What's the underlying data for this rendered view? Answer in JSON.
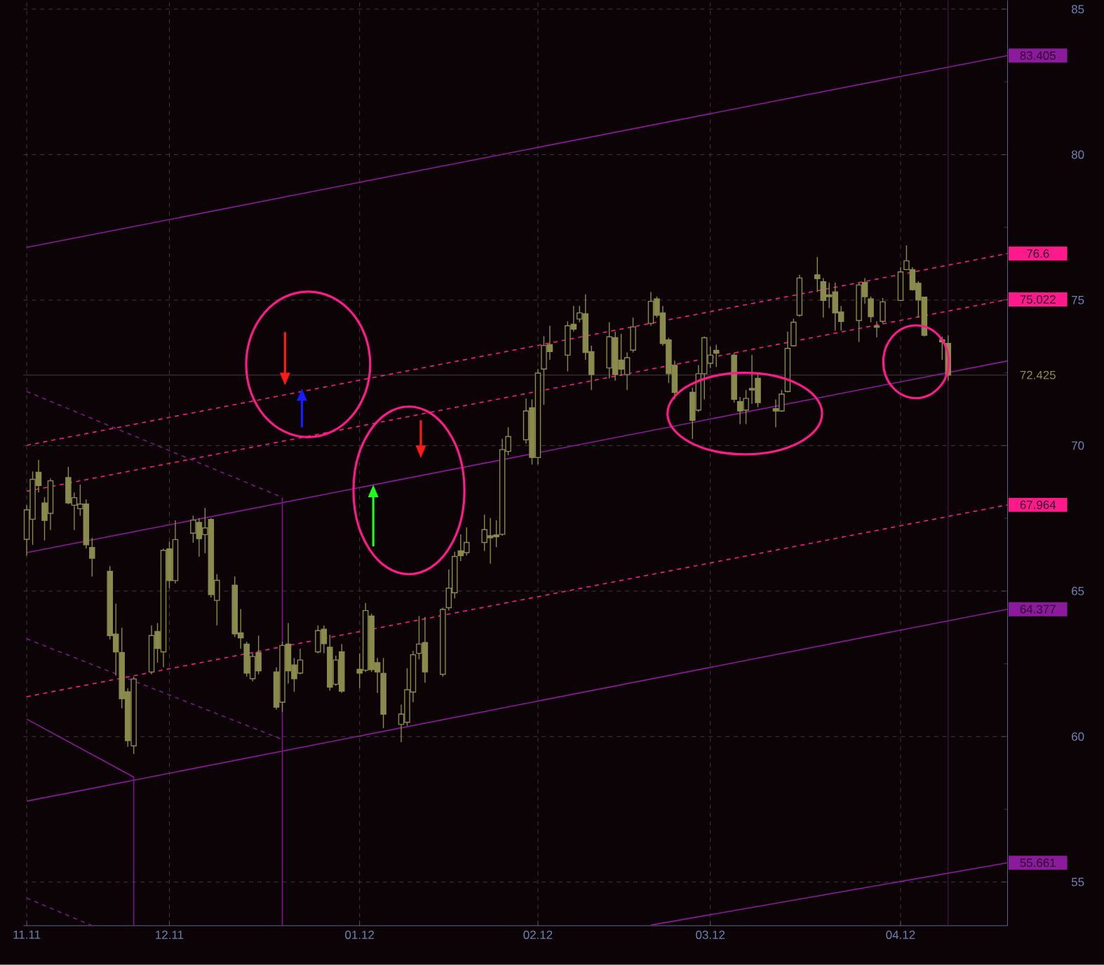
{
  "chart_data": {
    "type": "candlestick",
    "color": "#8a8a4c",
    "x": [
      "2011-11-07",
      "2011-11-08",
      "2011-11-09",
      "2011-11-10",
      "2011-11-11",
      "2011-11-14",
      "2011-11-15",
      "2011-11-16",
      "2011-11-17",
      "2011-11-18",
      "2011-11-21",
      "2011-11-22",
      "2011-11-23",
      "2011-11-24",
      "2011-11-25",
      "2011-11-28",
      "2011-11-29",
      "2011-11-30",
      "2011-12-01",
      "2011-12-02",
      "2011-12-05",
      "2011-12-06",
      "2011-12-07",
      "2011-12-08",
      "2011-12-09",
      "2011-12-12",
      "2011-12-13",
      "2011-12-14",
      "2011-12-15",
      "2011-12-16",
      "2011-12-19",
      "2011-12-20",
      "2011-12-21",
      "2011-12-22",
      "2011-12-23",
      "2011-12-26",
      "2011-12-27",
      "2011-12-28",
      "2011-12-29",
      "2011-12-30",
      "2012-01-02",
      "2012-01-03",
      "2012-01-04",
      "2012-01-05",
      "2012-01-06",
      "2012-01-09",
      "2012-01-10",
      "2012-01-11",
      "2012-01-12",
      "2012-01-13",
      "2012-01-16",
      "2012-01-17",
      "2012-01-18",
      "2012-01-19",
      "2012-01-20",
      "2012-01-23",
      "2012-01-24",
      "2012-01-25",
      "2012-01-26",
      "2012-01-27",
      "2012-01-30",
      "2012-01-31",
      "2012-02-01",
      "2012-02-02",
      "2012-02-03",
      "2012-02-06",
      "2012-02-07",
      "2012-02-08",
      "2012-02-09",
      "2012-02-10",
      "2012-02-13",
      "2012-02-14",
      "2012-02-15",
      "2012-02-16",
      "2012-02-17",
      "2012-02-20",
      "2012-02-21",
      "2012-02-22",
      "2012-02-23",
      "2012-02-24",
      "2012-02-27",
      "2012-02-28",
      "2012-02-29",
      "2012-03-01",
      "2012-03-02",
      "2012-03-05",
      "2012-03-06",
      "2012-03-07",
      "2012-03-08",
      "2012-03-09",
      "2012-03-12",
      "2012-03-13",
      "2012-03-14",
      "2012-03-15",
      "2012-03-16",
      "2012-03-19",
      "2012-03-20",
      "2012-03-21",
      "2012-03-22",
      "2012-03-23",
      "2012-03-26",
      "2012-03-27",
      "2012-03-28",
      "2012-03-29",
      "2012-03-30",
      "2012-04-02",
      "2012-04-03",
      "2012-04-04",
      "2012-04-05",
      "2012-04-06",
      "2012-04-09",
      "2012-04-10"
    ],
    "ohlc": [
      [
        66.78,
        67.95,
        66.22,
        67.79
      ],
      [
        67.47,
        69.11,
        66.59,
        68.84
      ],
      [
        69.08,
        69.51,
        68.39,
        68.63
      ],
      [
        68.03,
        68.23,
        66.74,
        67.43
      ],
      [
        67.67,
        68.87,
        67.1,
        68.79
      ],
      [
        68.9,
        69.27,
        67.99,
        68.03
      ],
      [
        67.95,
        68.39,
        67.1,
        68.21
      ],
      [
        67.83,
        68.66,
        67.59,
        67.99
      ],
      [
        67.99,
        68.15,
        66.46,
        66.59
      ],
      [
        66.5,
        66.83,
        65.5,
        66.13
      ],
      [
        65.68,
        65.86,
        63.34,
        63.47
      ],
      [
        63.52,
        64.57,
        62.1,
        62.91
      ],
      [
        62.89,
        63.74,
        60.97,
        61.3
      ],
      [
        61.54,
        61.66,
        59.65,
        59.86
      ],
      [
        59.68,
        62.06,
        59.4,
        61.98
      ],
      [
        62.22,
        63.82,
        62.14,
        63.47
      ],
      [
        63.61,
        63.9,
        62.54,
        63.03
      ],
      [
        62.91,
        66.46,
        62.38,
        66.4
      ],
      [
        66.45,
        66.7,
        65.1,
        65.36
      ],
      [
        65.36,
        67.43,
        65.26,
        66.77
      ],
      [
        66.99,
        67.59,
        66.66,
        67.44
      ],
      [
        67.36,
        67.51,
        66.18,
        66.8
      ],
      [
        66.94,
        67.86,
        66.3,
        67.17
      ],
      [
        67.46,
        67.51,
        64.78,
        64.88
      ],
      [
        64.68,
        65.58,
        63.82,
        65.37
      ],
      [
        65.2,
        65.5,
        63.42,
        63.53
      ],
      [
        63.56,
        64.38,
        63.02,
        63.39
      ],
      [
        63.18,
        63.26,
        62.06,
        62.18
      ],
      [
        61.99,
        62.86,
        61.9,
        62.75
      ],
      [
        62.89,
        63.47,
        62.14,
        62.26
      ],
      [
        62.22,
        62.38,
        60.93,
        61.01
      ],
      [
        61.18,
        63.26,
        60.85,
        63.13
      ],
      [
        63.18,
        63.9,
        61.82,
        62.26
      ],
      [
        62.46,
        62.7,
        61.54,
        61.99
      ],
      [
        62.18,
        63.02,
        62.14,
        62.63
      ],
      [
        62.91,
        63.82,
        62.86,
        63.64
      ],
      [
        63.69,
        63.82,
        62.86,
        63.19
      ],
      [
        63.07,
        63.5,
        61.58,
        61.7
      ],
      [
        61.8,
        62.78,
        61.74,
        62.63
      ],
      [
        62.91,
        63.18,
        61.5,
        61.56
      ],
      [
        62.31,
        62.86,
        61.66,
        62.18
      ],
      [
        62.28,
        64.59,
        62.22,
        64.33
      ],
      [
        64.14,
        64.22,
        62.22,
        62.3
      ],
      [
        62.54,
        62.7,
        61.5,
        62.22
      ],
      [
        62.17,
        62.7,
        60.29,
        60.77
      ],
      [
        60.42,
        61.1,
        59.81,
        60.77
      ],
      [
        60.49,
        62.35,
        60.37,
        61.61
      ],
      [
        61.53,
        62.94,
        61.18,
        62.81
      ],
      [
        62.86,
        64.14,
        62.65,
        63.18
      ],
      [
        63.23,
        64.11,
        61.85,
        62.22
      ],
      [
        62.14,
        64.43,
        62.06,
        64.37
      ],
      [
        64.43,
        65.74,
        64.33,
        65.1
      ],
      [
        64.94,
        66.35,
        64.75,
        66.19
      ],
      [
        66.38,
        66.95,
        66.03,
        66.22
      ],
      [
        66.32,
        67.19,
        66.22,
        66.67
      ],
      [
        66.67,
        67.63,
        66.38,
        67.11
      ],
      [
        66.9,
        67.51,
        65.94,
        66.83
      ],
      [
        66.93,
        67.43,
        66.51,
        66.87
      ],
      [
        66.95,
        70.23,
        66.9,
        69.86
      ],
      [
        69.8,
        70.63,
        69.67,
        70.31
      ],
      [
        70.2,
        71.62,
        70.07,
        71.19
      ],
      [
        71.3,
        71.59,
        69.35,
        69.59
      ],
      [
        69.59,
        72.63,
        69.35,
        72.49
      ],
      [
        72.63,
        73.76,
        71.4,
        73.44
      ],
      [
        73.47,
        74.12,
        72.95,
        73.23
      ],
      [
        73.11,
        74.27,
        72.55,
        74.12
      ],
      [
        74.17,
        74.8,
        73.92,
        74.0
      ],
      [
        74.35,
        74.8,
        74.24,
        74.56
      ],
      [
        74.53,
        75.2,
        72.95,
        73.2
      ],
      [
        73.23,
        73.44,
        71.91,
        72.44
      ],
      [
        72.67,
        74.24,
        72.31,
        73.74
      ],
      [
        73.71,
        73.92,
        72.23,
        72.44
      ],
      [
        72.94,
        73.84,
        72.39,
        72.63
      ],
      [
        72.44,
        73.2,
        71.91,
        73.02
      ],
      [
        73.28,
        74.4,
        73.2,
        74.08
      ],
      [
        74.2,
        75.28,
        74.12,
        74.96
      ],
      [
        75.04,
        75.12,
        74.4,
        74.48
      ],
      [
        74.56,
        74.8,
        73.43,
        73.51
      ],
      [
        73.63,
        73.71,
        72.15,
        72.47
      ],
      [
        72.76,
        72.92,
        71.59,
        71.83
      ],
      [
        71.83,
        71.99,
        70.23,
        70.87
      ],
      [
        71.22,
        72.76,
        71.16,
        72.47
      ],
      [
        72.47,
        73.75,
        71.59,
        73.71
      ],
      [
        72.83,
        73.4,
        72.66,
        73.11
      ],
      [
        73.27,
        73.47,
        72.7,
        73.18
      ],
      [
        73.11,
        73.19,
        71.48,
        71.59
      ],
      [
        71.51,
        71.67,
        70.74,
        71.19
      ],
      [
        71.22,
        71.91,
        70.74,
        71.62
      ],
      [
        71.96,
        73.11,
        71.43,
        71.91
      ],
      [
        72.31,
        72.44,
        71.32,
        71.48
      ],
      [
        71.27,
        71.59,
        70.63,
        71.19
      ],
      [
        71.19,
        71.91,
        71.16,
        71.77
      ],
      [
        71.86,
        73.92,
        71.83,
        73.34
      ],
      [
        73.43,
        74.36,
        73.4,
        74.24
      ],
      [
        74.48,
        75.87,
        74.43,
        75.76
      ],
      [
        75.87,
        76.48,
        75.28,
        75.74
      ],
      [
        75.63,
        75.76,
        74.4,
        74.99
      ],
      [
        75.18,
        75.6,
        74.72,
        75.12
      ],
      [
        75.28,
        75.6,
        73.95,
        74.56
      ],
      [
        74.59,
        74.8,
        73.95,
        74.27
      ],
      [
        74.3,
        75.6,
        73.56,
        75.52
      ],
      [
        75.61,
        75.76,
        74.88,
        75.12
      ],
      [
        75.04,
        75.12,
        74.24,
        74.43
      ],
      [
        74.11,
        74.27,
        73.72,
        74.07
      ],
      [
        74.27,
        75.07,
        74.19,
        74.94
      ],
      [
        74.99,
        76.13,
        74.96,
        75.97
      ],
      [
        76.05,
        76.88,
        76.03,
        76.35
      ],
      [
        76.05,
        76.13,
        75.33,
        75.36
      ],
      [
        75.58,
        75.65,
        74.4,
        75.0
      ],
      [
        75.1,
        75.1,
        73.75,
        73.79
      ],
      [
        73.63,
        73.75,
        72.95,
        73.56
      ],
      [
        73.51,
        73.79,
        72.23,
        72.425
      ]
    ],
    "series": [
      {
        "type": "line",
        "color": "#8c1a9c",
        "line_style": "solid",
        "x": [
          "2011-11-07",
          "2012-04-20"
        ],
        "values": [
          76.81,
          83.405
        ],
        "value_labels": [
          null,
          "83.405"
        ]
      },
      {
        "type": "line",
        "color": "#ff1a8c",
        "line_style": "dashed",
        "x": [
          "2011-11-07",
          "2012-04-20"
        ],
        "values": [
          70.01,
          76.6
        ],
        "value_labels": [
          null,
          "76.6"
        ]
      },
      {
        "type": "line",
        "color": "#ff1a8c",
        "line_style": "dashed",
        "x": [
          "2011-11-07",
          "2012-04-20"
        ],
        "values": [
          68.43,
          75.022
        ],
        "value_labels": [
          null,
          "75.022"
        ]
      },
      {
        "type": "line",
        "color": "#8c1a9c",
        "line_style": "solid",
        "x": [
          "2011-11-07",
          "2012-04-20"
        ],
        "values": [
          66.32,
          72.91
        ]
      },
      {
        "type": "line",
        "color": "#ff1a8c",
        "line_style": "dashed",
        "x": [
          "2011-11-07",
          "2012-04-20"
        ],
        "values": [
          61.37,
          67.964
        ],
        "value_labels": [
          null,
          "67.964"
        ]
      },
      {
        "type": "line",
        "color": "#8c1a9c",
        "line_style": "solid",
        "x": [
          "2011-11-07",
          "2012-04-20"
        ],
        "values": [
          57.78,
          64.377
        ],
        "value_labels": [
          null,
          "64.377"
        ]
      },
      {
        "type": "line",
        "color": "#8c1a9c",
        "line_style": "solid",
        "x": [
          "2012-02-20",
          "2012-04-20"
        ],
        "values": [
          53.52,
          55.661
        ],
        "value_labels": [
          null,
          "55.661"
        ]
      },
      {
        "type": "line",
        "color": "#7a1a8a",
        "line_style": "dashed",
        "x": [
          "2011-11-07",
          "2011-12-20"
        ],
        "values": [
          71.86,
          68.22
        ]
      },
      {
        "type": "line",
        "color": "#7a1a8a",
        "line_style": "dashed",
        "x": [
          "2011-11-07",
          "2011-12-20"
        ],
        "values": [
          63.36,
          59.9
        ]
      },
      {
        "type": "line",
        "color": "#8c1a9c",
        "line_style": "solid",
        "x": [
          "2011-11-07",
          "2011-11-25"
        ],
        "values": [
          60.6,
          58.61
        ]
      },
      {
        "type": "line",
        "color": "#7a1a8a",
        "line_style": "dashed",
        "x": [
          "2011-11-07",
          "2011-11-18"
        ],
        "values": [
          54.45,
          53.5
        ]
      },
      {
        "type": "line",
        "color": "#7a1a8a",
        "line_style": "solid",
        "x": [
          "2011-11-25",
          "2011-11-25"
        ],
        "values": [
          58.61,
          53.5
        ]
      },
      {
        "type": "line",
        "color": "#7a1a8a",
        "line_style": "solid",
        "x": [
          "2011-12-20",
          "2011-12-20"
        ],
        "values": [
          68.22,
          53.5
        ]
      }
    ],
    "ref_lines": [
      {
        "axis": "x",
        "value": "2012-04-10",
        "color": "#4a1450"
      },
      {
        "axis": "y",
        "value": 72.425,
        "label": "72.425",
        "color": "#302a2a"
      }
    ],
    "xlim": [
      "2011-11-07",
      "2012-04-20"
    ],
    "ylim": [
      53.5,
      85.3
    ],
    "xticks": [
      {
        "value": "2011-11-07",
        "label": "11.11"
      },
      {
        "value": "2011-12-01",
        "label": "12.11"
      },
      {
        "value": "2012-01-02",
        "label": "01.12"
      },
      {
        "value": "2012-02-01",
        "label": "02.12"
      },
      {
        "value": "2012-03-01",
        "label": "03.12"
      },
      {
        "value": "2012-04-02",
        "label": "04.12"
      }
    ],
    "yticks": [
      55,
      {
        "value": 57.5,
        "label": null
      },
      60,
      {
        "value": 62.5,
        "label": null
      },
      65,
      {
        "value": 67.5,
        "label": null
      },
      70,
      {
        "value": 72.5,
        "label": null
      },
      75,
      {
        "value": 77.5,
        "label": null
      },
      80,
      {
        "value": 82.5,
        "label": null
      },
      85
    ],
    "grid": true
  }
}
